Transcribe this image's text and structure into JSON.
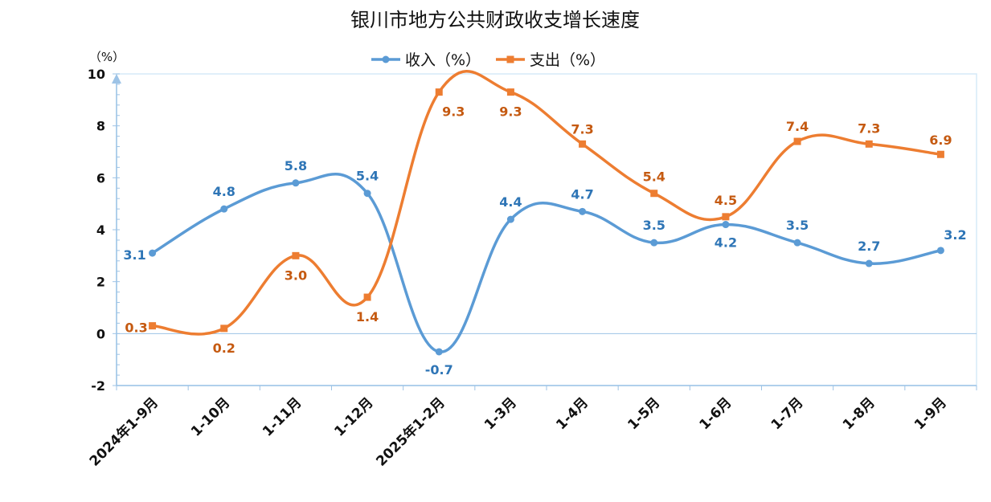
{
  "chart_data": {
    "type": "line",
    "title": "银川市地方公共财政收支增长速度",
    "y_unit_label": "（%）",
    "ylim": [
      -2,
      10
    ],
    "yticks": [
      -2,
      0,
      2,
      4,
      6,
      8,
      10
    ],
    "ytick_labels": [
      "-2",
      "0",
      "2",
      "4",
      "6",
      "8",
      "10"
    ],
    "categories": [
      "2024年1-9月",
      "1-10月",
      "1-11月",
      "1-12月",
      "2025年1-2月",
      "1-3月",
      "1-4月",
      "1-5月",
      "1-6月",
      "1-7月",
      "1-8月",
      "1-9月"
    ],
    "series": [
      {
        "name": "收入（%）",
        "color": "#5B9BD5",
        "label_color": "#2E75B6",
        "marker": "circle",
        "values": [
          3.1,
          4.8,
          5.8,
          5.4,
          -0.7,
          4.4,
          4.7,
          3.5,
          4.2,
          3.5,
          2.7,
          3.2
        ],
        "labels": [
          "3.1",
          "4.8",
          "5.8",
          "5.4",
          "-0.7",
          "4.4",
          "4.7",
          "3.5",
          "4.2",
          "3.5",
          "2.7",
          "3.2"
        ]
      },
      {
        "name": "支出（%）",
        "color": "#ED7D31",
        "label_color": "#C55A11",
        "marker": "square",
        "values": [
          0.3,
          0.2,
          3.0,
          1.4,
          9.3,
          9.3,
          7.3,
          5.4,
          4.5,
          7.4,
          7.3,
          6.9
        ],
        "labels": [
          "0.3",
          "0.2",
          "3.0",
          "1.4",
          "9.3",
          "9.3",
          "7.3",
          "5.4",
          "4.5",
          "7.4",
          "7.3",
          "6.9"
        ]
      }
    ],
    "legend_position": "top-center",
    "grid": false
  }
}
